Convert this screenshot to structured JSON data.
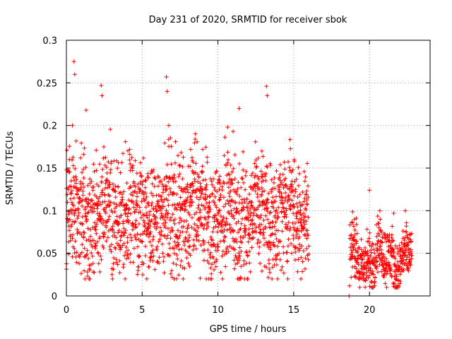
{
  "chart_data": {
    "type": "scatter",
    "title": "Day 231 of 2020, SRMTID for receiver sbok",
    "xlabel": "GPS time / hours",
    "ylabel": "SRMTID / TECUs",
    "xlim": [
      0,
      24
    ],
    "ylim": [
      0,
      0.3
    ],
    "xticks": [
      0,
      5,
      10,
      15,
      20
    ],
    "xtick_labels": [
      "0",
      "5",
      "10",
      "15",
      "20"
    ],
    "yticks": [
      0,
      0.05,
      0.1,
      0.15,
      0.2,
      0.25,
      0.3
    ],
    "ytick_labels": [
      "0",
      "0.05",
      "0.1",
      "0.15",
      "0.2",
      "0.25",
      "0.3"
    ],
    "grid": true,
    "marker": "plus",
    "color": "#ff0000",
    "series": [
      {
        "name": "SRMTID",
        "segments": [
          {
            "start": 0.0,
            "end": 16.0,
            "base": 0.095,
            "low": 0.02,
            "high": 0.2
          },
          {
            "start": 18.7,
            "end": 22.8,
            "base": 0.045,
            "low": 0.01,
            "high": 0.1
          }
        ],
        "peaks": [
          {
            "x": 0.5,
            "y": 0.275
          },
          {
            "x": 0.55,
            "y": 0.26
          },
          {
            "x": 2.3,
            "y": 0.247
          },
          {
            "x": 2.35,
            "y": 0.235
          },
          {
            "x": 6.6,
            "y": 0.257
          },
          {
            "x": 6.65,
            "y": 0.24
          },
          {
            "x": 13.2,
            "y": 0.246
          },
          {
            "x": 13.25,
            "y": 0.235
          },
          {
            "x": 11.4,
            "y": 0.22
          },
          {
            "x": 11.0,
            "y": 0.193
          },
          {
            "x": 1.3,
            "y": 0.218
          },
          {
            "x": 0.4,
            "y": 0.2
          },
          {
            "x": 3.9,
            "y": 0.181
          },
          {
            "x": 7.2,
            "y": 0.181
          },
          {
            "x": 8.2,
            "y": 0.172
          },
          {
            "x": 9.0,
            "y": 0.172
          },
          {
            "x": 12.9,
            "y": 0.17
          },
          {
            "x": 20.0,
            "y": 0.124
          },
          {
            "x": 21.6,
            "y": 0.097
          },
          {
            "x": 18.65,
            "y": 0.0
          }
        ]
      }
    ]
  }
}
